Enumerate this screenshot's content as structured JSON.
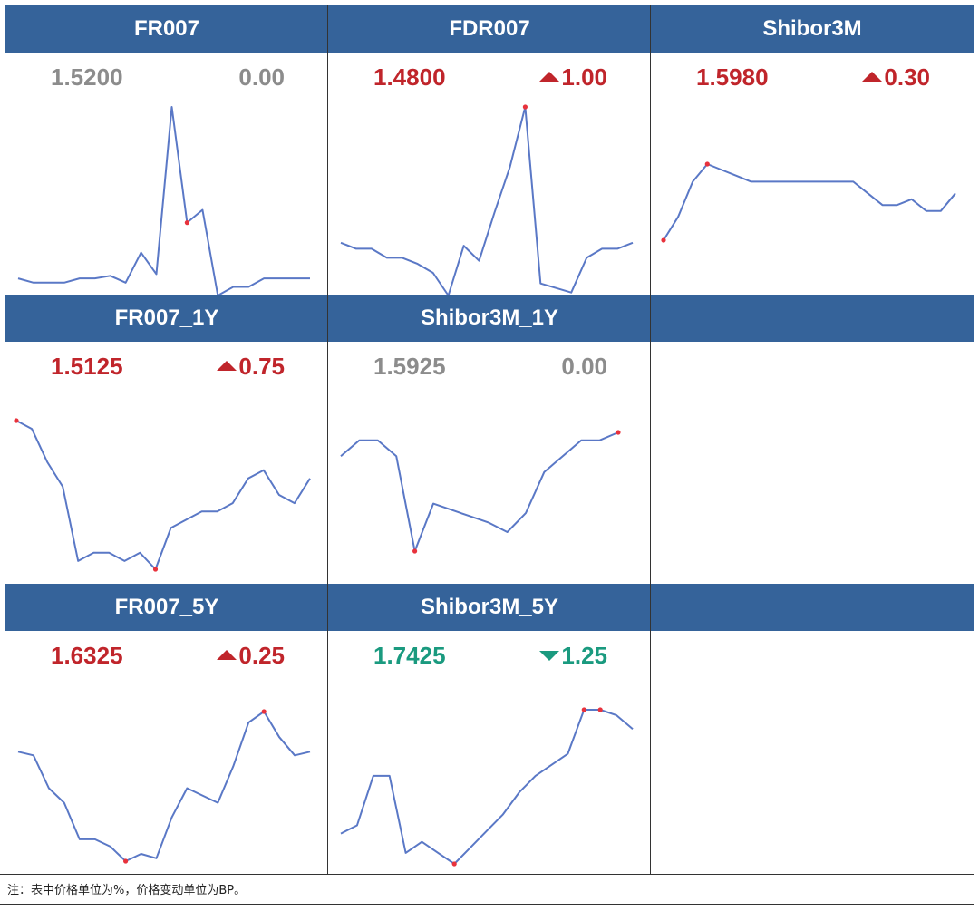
{
  "colors": {
    "header_bg": "#35639a",
    "line": "#5a78c6",
    "marker": "#e8323c",
    "up": "#c0252b",
    "down": "#1a9a7f",
    "flat": "#8c8c8c"
  },
  "chart_data": [
    {
      "type": "line",
      "title": "FR007",
      "price": "1.5200",
      "change": "0.00",
      "direction": "flat",
      "values": [
        1.44,
        1.435,
        1.435,
        1.435,
        1.44,
        1.44,
        1.443,
        1.435,
        1.47,
        1.445,
        1.64,
        1.505,
        1.52,
        1.42,
        1.43,
        1.43,
        1.44,
        1.44,
        1.44,
        1.44
      ],
      "highlight": [
        11
      ]
    },
    {
      "type": "line",
      "title": "FDR007",
      "price": "1.4800",
      "change": "1.00",
      "direction": "up",
      "values": [
        1.39,
        1.386,
        1.386,
        1.38,
        1.38,
        1.376,
        1.37,
        1.355,
        1.388,
        1.378,
        1.41,
        1.44,
        1.48,
        1.363,
        1.36,
        1.357,
        1.38,
        1.386,
        1.386,
        1.39
      ],
      "highlight": [
        12
      ]
    },
    {
      "type": "line",
      "title": "Shibor3M",
      "price": "1.5980",
      "change": "0.30",
      "direction": "up",
      "values": [
        1.585,
        1.589,
        1.595,
        1.598,
        1.597,
        1.596,
        1.595,
        1.595,
        1.595,
        1.595,
        1.595,
        1.595,
        1.595,
        1.595,
        1.593,
        1.591,
        1.591,
        1.592,
        1.59,
        1.59,
        1.593
      ],
      "highlight": [
        0,
        3
      ]
    },
    {
      "type": "line",
      "title": "FR007_1Y",
      "price": "1.5125",
      "change": "0.75",
      "direction": "up",
      "values": [
        1.5125,
        1.51,
        1.5,
        1.4925,
        1.47,
        1.4725,
        1.4725,
        1.47,
        1.4725,
        1.4675,
        1.48,
        1.4825,
        1.485,
        1.485,
        1.4875,
        1.495,
        1.4975,
        1.49,
        1.4875,
        1.495
      ],
      "highlight": [
        0,
        9
      ]
    },
    {
      "type": "line",
      "title": "Shibor3M_1Y",
      "price": "1.5925",
      "change": "0.00",
      "direction": "flat",
      "values": [
        1.585,
        1.59,
        1.59,
        1.585,
        1.555,
        1.57,
        1.568,
        1.566,
        1.564,
        1.561,
        1.567,
        1.58,
        1.585,
        1.59,
        1.59,
        1.5925
      ],
      "highlight": [
        4,
        15
      ]
    },
    {
      "type": "line",
      "title": "FR007_5Y",
      "price": "1.6325",
      "change": "0.25",
      "direction": "up",
      "values": [
        1.605,
        1.6025,
        1.58,
        1.57,
        1.545,
        1.545,
        1.54,
        1.53,
        1.535,
        1.532,
        1.56,
        1.58,
        1.575,
        1.57,
        1.595,
        1.625,
        1.6325,
        1.615,
        1.6025,
        1.605
      ],
      "highlight": [
        7,
        16
      ]
    },
    {
      "type": "line",
      "title": "Shibor3M_5Y",
      "price": "1.7425",
      "change": "1.25",
      "direction": "down",
      "values": [
        1.6475,
        1.655,
        1.7,
        1.7,
        1.63,
        1.64,
        1.63,
        1.62,
        1.635,
        1.65,
        1.665,
        1.685,
        1.7,
        1.71,
        1.72,
        1.76,
        1.76,
        1.755,
        1.7425
      ],
      "highlight": [
        7,
        15,
        16
      ]
    }
  ],
  "note": "注：表中价格单位为%，价格变动单位为BP。"
}
